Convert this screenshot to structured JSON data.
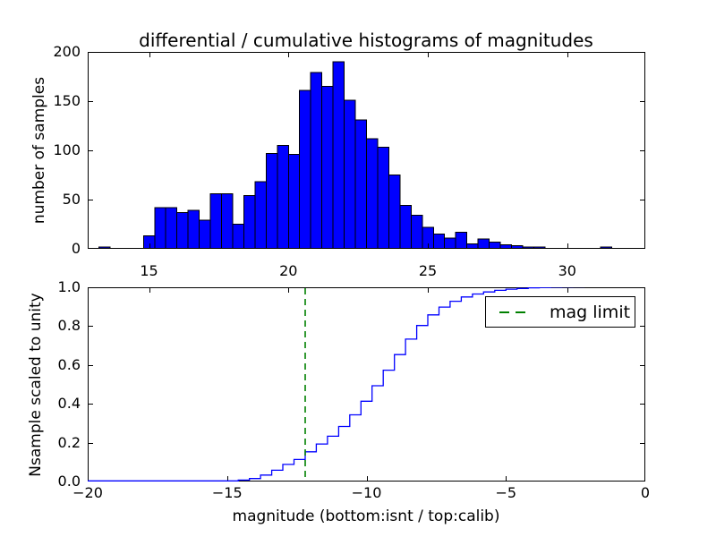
{
  "figure": {
    "title": "differential / cumulative histograms of magnitudes",
    "background": "#ffffff"
  },
  "top_plot": {
    "ylabel": "number of samples",
    "xtick_labels": [
      "15",
      "20",
      "25",
      "30"
    ],
    "ytick_labels": [
      "0",
      "50",
      "100",
      "150",
      "200"
    ]
  },
  "bottom_plot": {
    "ylabel": "Nsample scaled to unity",
    "xlabel": "magnitude (bottom:isnt / top:calib)",
    "xtick_labels": [
      "−20",
      "−15",
      "−10",
      "−5",
      "0"
    ],
    "ytick_labels": [
      "0.0",
      "0.2",
      "0.4",
      "0.6",
      "0.8",
      "1.0"
    ],
    "legend_label": "mag limit"
  },
  "colors": {
    "hist_fill": "#0000ff",
    "hist_edge": "#000000",
    "cumulative_line": "#0000ff",
    "mag_limit_line": "#008000",
    "axis": "#000000",
    "background": "#ffffff"
  },
  "chart_data": [
    {
      "type": "bar",
      "subplot": "top",
      "title": "differential / cumulative histograms of magnitudes",
      "ylabel": "number of samples",
      "xlabel": "",
      "xlim": [
        12.8,
        32.8
      ],
      "ylim": [
        0,
        200
      ],
      "xticks": [
        15,
        20,
        25,
        30
      ],
      "yticks": [
        0,
        50,
        100,
        150,
        200
      ],
      "bin_start": 12.8,
      "bin_width": 0.4,
      "values": [
        0,
        2,
        0,
        0,
        0,
        13,
        42,
        42,
        37,
        39,
        29,
        56,
        56,
        25,
        54,
        68,
        97,
        105,
        96,
        161,
        179,
        165,
        190,
        151,
        131,
        112,
        103,
        75,
        44,
        34,
        22,
        15,
        11,
        17,
        5,
        10,
        7,
        4,
        3,
        2,
        2,
        0,
        0,
        0,
        0,
        0,
        2,
        0,
        0,
        0
      ],
      "grid": false,
      "legend": null
    },
    {
      "type": "line",
      "subplot": "bottom",
      "style": "step-cumulative",
      "ylabel": "Nsample scaled to unity",
      "xlabel": "magnitude (bottom:isnt / top:calib)",
      "xlim": [
        -20,
        0
      ],
      "ylim": [
        0.0,
        1.0
      ],
      "xticks": [
        -20,
        -15,
        -10,
        -5,
        0
      ],
      "yticks": [
        0.0,
        0.2,
        0.4,
        0.6,
        0.8,
        1.0
      ],
      "step_start": -14.6,
      "step_width": 0.4,
      "cumulative_fractions": [
        0.004,
        0.012,
        0.03,
        0.055,
        0.085,
        0.11,
        0.15,
        0.19,
        0.23,
        0.28,
        0.34,
        0.41,
        0.49,
        0.57,
        0.65,
        0.73,
        0.8,
        0.855,
        0.895,
        0.925,
        0.947,
        0.962,
        0.973,
        0.981,
        0.987,
        0.991,
        0.994,
        0.996,
        0.9975,
        0.9985,
        0.9992,
        0.9996,
        1.0
      ],
      "mag_limit": -12.2,
      "legend": {
        "entries": [
          "mag limit"
        ],
        "position": "upper right"
      },
      "grid": false
    }
  ]
}
